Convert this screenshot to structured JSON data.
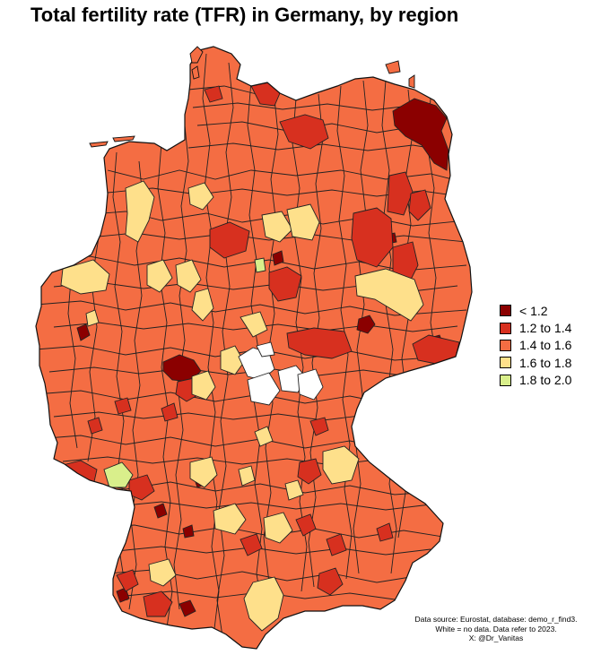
{
  "title": "Total fertility rate (TFR) in Germany, by region",
  "legend": [
    {
      "label": "< 1.2",
      "color": "#8b0000"
    },
    {
      "label": "1.2 to 1.4",
      "color": "#d7301f"
    },
    {
      "label": "1.4 to 1.6",
      "color": "#f46d43"
    },
    {
      "label": "1.6 to 1.8",
      "color": "#fee08b"
    },
    {
      "label": "1.8 to 2.0",
      "color": "#d9ef8b"
    }
  ],
  "no_data_color": "#ffffff",
  "caption": {
    "line1": "Data source: Eurostat, database: demo_r_find3.",
    "line2": "White = no data. Data refer to 2023.",
    "line3": "X: @Dr_Vanitas"
  }
}
